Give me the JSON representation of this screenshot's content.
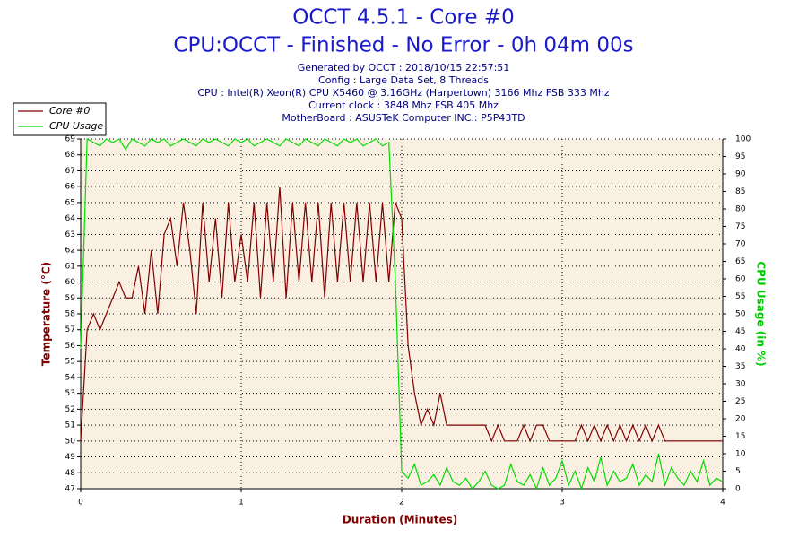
{
  "chart_data": {
    "type": "line",
    "title": "OCCT 4.5.1 - Core #0",
    "subtitle": "CPU:OCCT - Finished - No Error - 0h 04m 00s",
    "info": [
      "Generated by OCCT : 2018/10/15 22:57:51",
      "Config : Large Data Set, 8 Threads",
      "CPU : Intel(R) Xeon(R) CPU X5460 @ 3.16GHz (Harpertown) 3166 Mhz FSB 333 Mhz",
      "Current clock : 3848 Mhz FSB 405 Mhz",
      "MotherBoard : ASUSTeK Computer INC.: P5P43TD"
    ],
    "xlabel": "Duration (Minutes)",
    "ylabel": "Temperature (°C)",
    "y2label": "CPU Usage (in %)",
    "x": [
      0,
      0.04,
      0.08,
      0.12,
      0.16,
      0.2,
      0.24,
      0.28,
      0.32,
      0.36,
      0.4,
      0.44,
      0.48,
      0.52,
      0.56,
      0.6,
      0.64,
      0.68,
      0.72,
      0.76,
      0.8,
      0.84,
      0.88,
      0.92,
      0.96,
      1,
      1.04,
      1.08,
      1.12,
      1.16,
      1.2,
      1.24,
      1.28,
      1.32,
      1.36,
      1.4,
      1.44,
      1.48,
      1.52,
      1.56,
      1.6,
      1.64,
      1.68,
      1.72,
      1.76,
      1.8,
      1.84,
      1.88,
      1.92,
      1.96,
      2,
      2.04,
      2.08,
      2.12,
      2.16,
      2.2,
      2.24,
      2.28,
      2.32,
      2.36,
      2.4,
      2.44,
      2.48,
      2.52,
      2.56,
      2.6,
      2.64,
      2.68,
      2.72,
      2.76,
      2.8,
      2.84,
      2.88,
      2.92,
      2.96,
      3,
      3.04,
      3.08,
      3.12,
      3.16,
      3.2,
      3.24,
      3.28,
      3.32,
      3.36,
      3.4,
      3.44,
      3.48,
      3.52,
      3.56,
      3.6,
      3.64,
      3.68,
      3.72,
      3.76,
      3.8,
      3.84,
      3.88,
      3.92,
      3.96,
      4
    ],
    "series": [
      {
        "name": "Core #0",
        "color": "#800000",
        "values": [
          50,
          57,
          58,
          57,
          58,
          59,
          60,
          59,
          59,
          61,
          58,
          62,
          58,
          63,
          64,
          61,
          65,
          62,
          58,
          65,
          60,
          64,
          59,
          65,
          60,
          63,
          60,
          65,
          59,
          65,
          60,
          66,
          59,
          65,
          60,
          65,
          60,
          65,
          59,
          65,
          60,
          65,
          60,
          65,
          60,
          65,
          60,
          65,
          60,
          65,
          64,
          56,
          53,
          51,
          52,
          51,
          53,
          51,
          51,
          51,
          51,
          51,
          51,
          51,
          50,
          51,
          50,
          50,
          50,
          51,
          50,
          51,
          51,
          50,
          50,
          50,
          50,
          50,
          51,
          50,
          51,
          50,
          51,
          50,
          51,
          50,
          51,
          50,
          51,
          50,
          51,
          50,
          50,
          50,
          50,
          50,
          50,
          50,
          50,
          50,
          50
        ]
      },
      {
        "name": "CPU Usage",
        "color": "#00dd00",
        "axis": "y2",
        "values": [
          40,
          100,
          99,
          98,
          100,
          99,
          100,
          97,
          100,
          99,
          98,
          100,
          99,
          100,
          98,
          99,
          100,
          99,
          98,
          100,
          99,
          100,
          99,
          98,
          100,
          99,
          100,
          98,
          99,
          100,
          99,
          98,
          100,
          99,
          98,
          100,
          99,
          98,
          100,
          99,
          98,
          100,
          99,
          100,
          98,
          99,
          100,
          98,
          99,
          60,
          5,
          3,
          7,
          1,
          2,
          4,
          1,
          6,
          2,
          1,
          3,
          0,
          2,
          5,
          1,
          0,
          1,
          7,
          2,
          1,
          4,
          0,
          6,
          1,
          3,
          8,
          1,
          5,
          0,
          6,
          2,
          9,
          1,
          5,
          2,
          3,
          7,
          1,
          4,
          2,
          10,
          1,
          6,
          3,
          1,
          5,
          2,
          8,
          1,
          3,
          2
        ]
      }
    ],
    "xlim": [
      0,
      4
    ],
    "xticks": [
      0,
      1,
      2,
      3,
      4
    ],
    "ylim": [
      47,
      69
    ],
    "yticks": [
      47,
      48,
      49,
      50,
      51,
      52,
      53,
      54,
      55,
      56,
      57,
      58,
      59,
      60,
      61,
      62,
      63,
      64,
      65,
      66,
      67,
      68,
      69
    ],
    "y2lim": [
      0,
      100
    ],
    "y2ticks": [
      0,
      5,
      10,
      15,
      20,
      25,
      30,
      35,
      40,
      45,
      50,
      55,
      60,
      65,
      70,
      75,
      80,
      85,
      90,
      95,
      100
    ],
    "grid": true
  }
}
